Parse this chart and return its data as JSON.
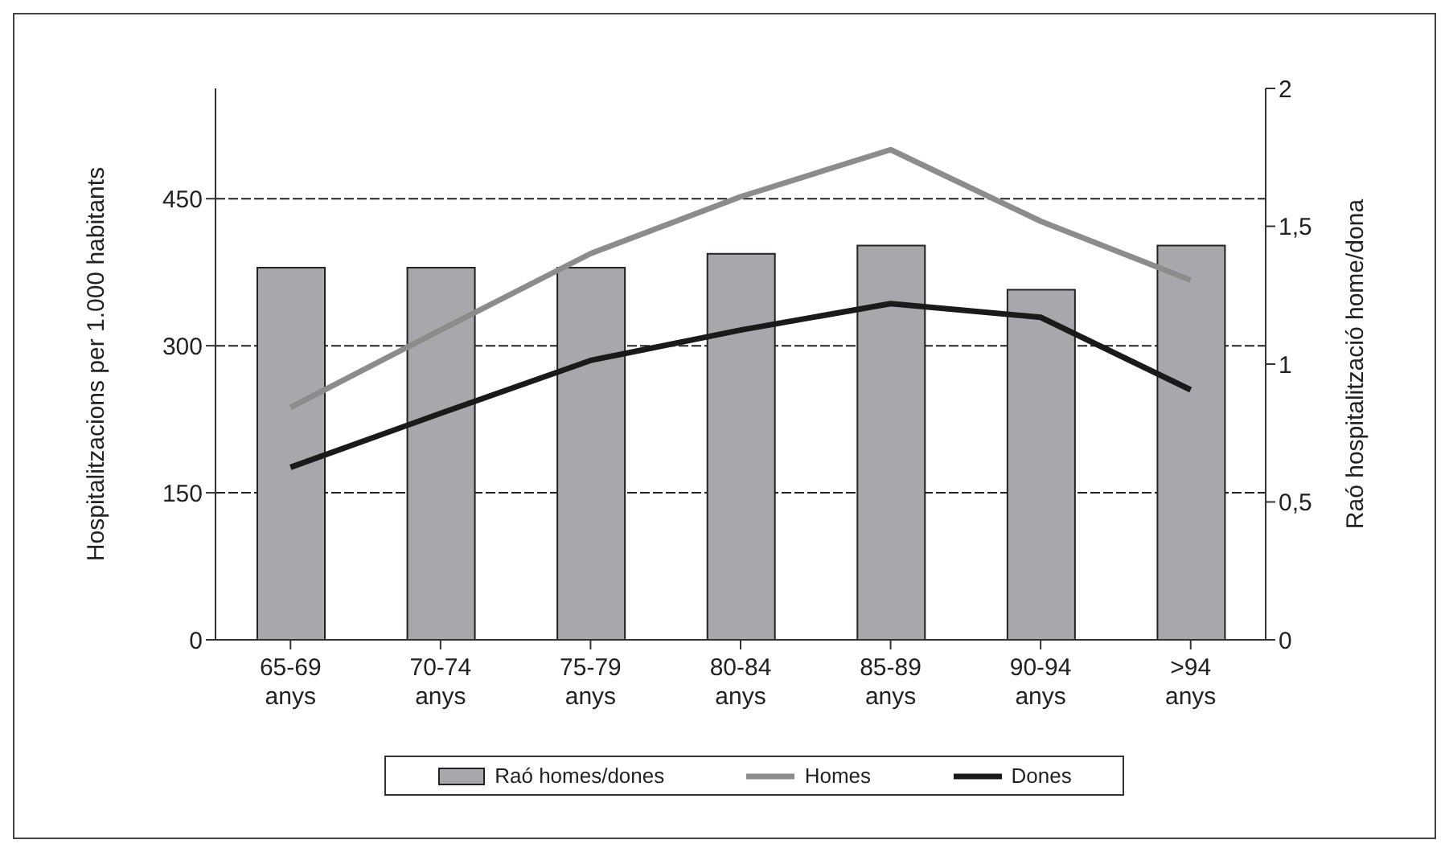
{
  "chart_data": {
    "type": "bar",
    "categories": [
      "65-69 anys",
      "70-74 anys",
      "75-79 anys",
      "80-84 anys",
      "85-89 anys",
      "90-94 anys",
      ">94 anys"
    ],
    "ylabel": "Hospitalitzacions per 1.000 habitants",
    "y2label": "Raó hospitalització home/dona",
    "series": [
      {
        "name": "Raó homes/dones",
        "axis": "y2",
        "color": "#a7a8ab",
        "values": [
          1.35,
          1.35,
          1.35,
          1.4,
          1.43,
          1.27,
          1.43
        ]
      },
      {
        "name": "Homes",
        "type": "line",
        "color": "#8c8c8c",
        "values": [
          237,
          316,
          394,
          452,
          500,
          427,
          367
        ]
      },
      {
        "name": "Dones",
        "type": "line",
        "color": "#1a1a1a",
        "values": [
          176,
          231,
          285,
          316,
          343,
          329,
          255
        ]
      }
    ],
    "ylim": [
      0,
      562.5
    ],
    "yticks": [
      0,
      150,
      300,
      450
    ],
    "y2lim": [
      0,
      2
    ],
    "y2ticks": [
      0,
      {
        "value": 0.5,
        "label": "0,5"
      },
      1,
      {
        "value": 1.5,
        "label": "1,5"
      },
      2
    ],
    "grid": "y",
    "line_style": "solid",
    "marker": "none",
    "legend": "bottom"
  }
}
